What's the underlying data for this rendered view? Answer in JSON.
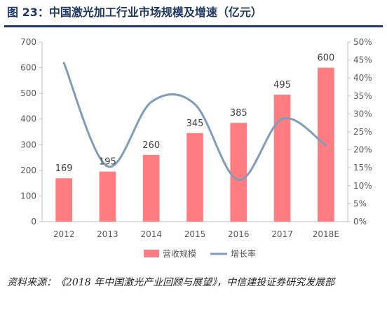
{
  "title": "图 23：中国激光加工行业市场规模及增速（亿元）",
  "source": "资料来源：《2018 年中国激光产业回顾与展望》，中信建投证券研究发展部",
  "colors": {
    "title": "#1f3864",
    "bar": "#ff7c80",
    "line": "#7f9db9",
    "axis_text": "#595959",
    "grid": "#d9d9d9"
  },
  "chart_data": {
    "type": "bar",
    "categories": [
      "2012",
      "2013",
      "2014",
      "2015",
      "2016",
      "2017",
      "2018E"
    ],
    "series": [
      {
        "name": "营收规模",
        "type": "bar",
        "axis": "left",
        "values": [
          169,
          195,
          260,
          345,
          385,
          495,
          600
        ],
        "data_labels": [
          "169",
          "195",
          "260",
          "345",
          "385",
          "495",
          "600"
        ]
      },
      {
        "name": "增长率",
        "type": "line",
        "axis": "right",
        "smooth": true,
        "values": [
          44.2,
          15.4,
          33.3,
          32.7,
          11.6,
          28.6,
          21.2
        ]
      }
    ],
    "y_left": {
      "min": 0,
      "max": 700,
      "ticks": [
        "0",
        "100",
        "200",
        "300",
        "400",
        "500",
        "600",
        "700"
      ]
    },
    "y_right": {
      "min": 0,
      "max": 50,
      "ticks": [
        "0%",
        "5%",
        "10%",
        "15%",
        "20%",
        "25%",
        "30%",
        "35%",
        "40%",
        "45%",
        "50%"
      ]
    },
    "legend": {
      "placement": "bottom",
      "entries": [
        "营收规模",
        "增长率"
      ]
    },
    "grid": false
  }
}
